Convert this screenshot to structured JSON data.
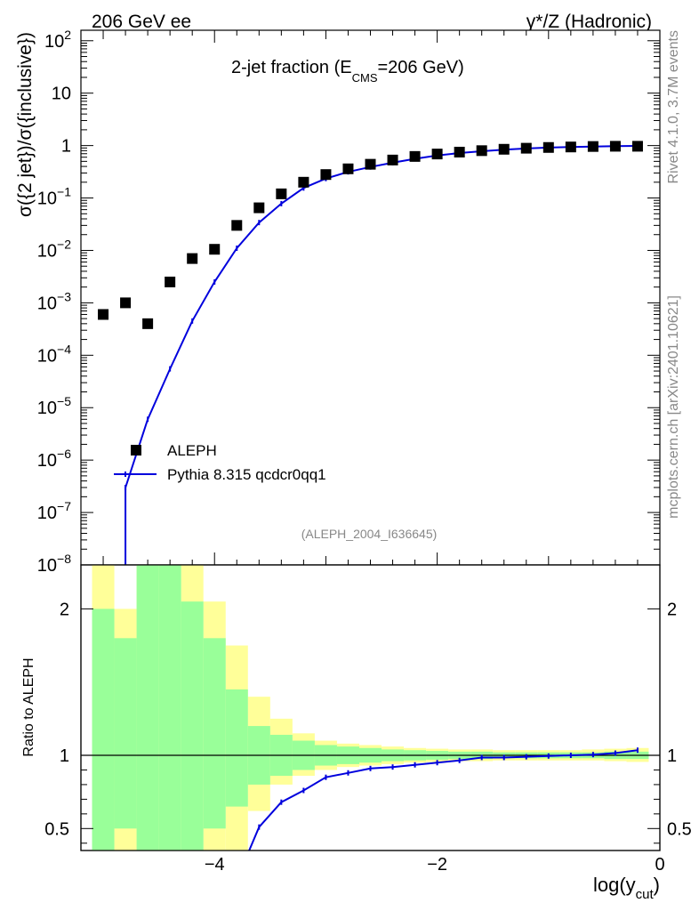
{
  "chart_data": {
    "type": "scatter",
    "header": {
      "left": "206 GeV ee",
      "right": "γ*/Z (Hadronic)"
    },
    "title": {
      "prefix": "2-jet fraction (E",
      "sub": "CMS",
      "suffix": "=206 GeV)"
    },
    "ylabel": "σ({2 jet})/σ({inclusive})",
    "ratio_ylabel": "Ratio to ALEPH",
    "xlabel": {
      "main": "log(y",
      "sub": "cut",
      "close": ")"
    },
    "side_text": {
      "top": "Rivet 4.1.0,  3.7M events",
      "bottom": "mcplots.cern.ch [arXiv:2401.10621]"
    },
    "analysis_tag": "(ALEPH_2004_I636645)",
    "xlim": [
      -5.2,
      0
    ],
    "ylim_log10": [
      -8,
      2.2
    ],
    "ratio_ylim": [
      0.35,
      2.3
    ],
    "x_ticks": [
      {
        "value": -4,
        "label": "−4"
      },
      {
        "value": -2,
        "label": "−2"
      },
      {
        "value": 0,
        "label": "0"
      }
    ],
    "y_ticks": [
      {
        "exp": 2,
        "base": "10",
        "sup": "2"
      },
      {
        "exp": 1,
        "base": "10",
        "sup": ""
      },
      {
        "exp": 0,
        "base": "1",
        "sup": ""
      },
      {
        "exp": -1,
        "base": "10",
        "sup": "−1"
      },
      {
        "exp": -2,
        "base": "10",
        "sup": "−2"
      },
      {
        "exp": -3,
        "base": "10",
        "sup": "−3"
      },
      {
        "exp": -4,
        "base": "10",
        "sup": "−4"
      },
      {
        "exp": -5,
        "base": "10",
        "sup": "−5"
      },
      {
        "exp": -6,
        "base": "10",
        "sup": "−6"
      },
      {
        "exp": -7,
        "base": "10",
        "sup": "−7"
      },
      {
        "exp": -8,
        "base": "10",
        "sup": "−8"
      }
    ],
    "ratio_y_ticks": [
      {
        "value": 2,
        "label": "2"
      },
      {
        "value": 1,
        "label": "1"
      },
      {
        "value": 0.5,
        "label": "0.5"
      }
    ],
    "series": [
      {
        "name": "ALEPH",
        "marker": "square",
        "color": "#000000",
        "x": [
          -5.0,
          -4.8,
          -4.6,
          -4.4,
          -4.2,
          -4.0,
          -3.8,
          -3.6,
          -3.4,
          -3.2,
          -3.0,
          -2.8,
          -2.6,
          -2.4,
          -2.2,
          -2.0,
          -1.8,
          -1.6,
          -1.4,
          -1.2,
          -1.0,
          -0.8,
          -0.6,
          -0.4,
          -0.2
        ],
        "y": [
          0.0006,
          0.001,
          0.0004,
          0.0025,
          0.007,
          0.0105,
          0.03,
          0.065,
          0.12,
          0.2,
          0.28,
          0.36,
          0.44,
          0.53,
          0.62,
          0.69,
          0.75,
          0.8,
          0.85,
          0.89,
          0.92,
          0.94,
          0.96,
          0.97,
          0.97
        ]
      },
      {
        "name": "Pythia 8.315 qcdcr0qq1",
        "marker": "line",
        "color": "#0000dd",
        "x": [
          -4.8,
          -4.6,
          -4.4,
          -4.2,
          -4.0,
          -3.8,
          -3.6,
          -3.4,
          -3.2,
          -3.0,
          -2.8,
          -2.6,
          -2.4,
          -2.2,
          -2.0,
          -1.8,
          -1.6,
          -1.4,
          -1.2,
          -1.0,
          -0.8,
          -0.6,
          -0.4,
          -0.2
        ],
        "y": [
          3e-07,
          6e-06,
          5.5e-05,
          0.00045,
          0.0025,
          0.011,
          0.034,
          0.078,
          0.155,
          0.235,
          0.315,
          0.39,
          0.47,
          0.56,
          0.65,
          0.72,
          0.78,
          0.835,
          0.88,
          0.915,
          0.94,
          0.96,
          0.975,
          0.985
        ]
      }
    ],
    "ratio": {
      "mc_x": [
        -3.7,
        -3.6,
        -3.4,
        -3.2,
        -3.0,
        -2.8,
        -2.6,
        -2.4,
        -2.2,
        -2.0,
        -1.8,
        -1.6,
        -1.4,
        -1.2,
        -1.0,
        -0.8,
        -0.6,
        -0.4,
        -0.2
      ],
      "mc_y": [
        0.33,
        0.51,
        0.68,
        0.76,
        0.85,
        0.88,
        0.91,
        0.92,
        0.935,
        0.95,
        0.965,
        0.985,
        0.985,
        0.99,
        0.995,
        1.0,
        1.005,
        1.015,
        1.035
      ],
      "bins": [
        {
          "x0": -5.1,
          "x1": -4.9,
          "inner_lo": 0.35,
          "inner_hi": 2.0,
          "outer_lo": 0.35,
          "outer_hi": 2.3
        },
        {
          "x0": -4.9,
          "x1": -4.7,
          "inner_lo": 0.5,
          "inner_hi": 1.8,
          "outer_lo": 0.35,
          "outer_hi": 2.0
        },
        {
          "x0": -4.7,
          "x1": -4.5,
          "inner_lo": 0.35,
          "inner_hi": 2.3,
          "outer_lo": 0.35,
          "outer_hi": 2.3
        },
        {
          "x0": -4.5,
          "x1": -4.3,
          "inner_lo": 0.35,
          "inner_hi": 2.3,
          "outer_lo": 0.35,
          "outer_hi": 2.3
        },
        {
          "x0": -4.3,
          "x1": -4.1,
          "inner_lo": 0.35,
          "inner_hi": 2.05,
          "outer_lo": 0.35,
          "outer_hi": 2.3
        },
        {
          "x0": -4.1,
          "x1": -3.9,
          "inner_lo": 0.5,
          "inner_hi": 1.8,
          "outer_lo": 0.35,
          "outer_hi": 2.05
        },
        {
          "x0": -3.9,
          "x1": -3.7,
          "inner_lo": 0.65,
          "inner_hi": 1.45,
          "outer_lo": 0.35,
          "outer_hi": 1.75
        },
        {
          "x0": -3.7,
          "x1": -3.5,
          "inner_lo": 0.8,
          "inner_hi": 1.2,
          "outer_lo": 0.62,
          "outer_hi": 1.4
        },
        {
          "x0": -3.5,
          "x1": -3.3,
          "inner_lo": 0.86,
          "inner_hi": 1.14,
          "outer_lo": 0.8,
          "outer_hi": 1.25
        },
        {
          "x0": -3.3,
          "x1": -3.1,
          "inner_lo": 0.9,
          "inner_hi": 1.1,
          "outer_lo": 0.86,
          "outer_hi": 1.15
        },
        {
          "x0": -3.1,
          "x1": -2.9,
          "inner_lo": 0.93,
          "inner_hi": 1.07,
          "outer_lo": 0.9,
          "outer_hi": 1.1
        },
        {
          "x0": -2.9,
          "x1": -2.7,
          "inner_lo": 0.94,
          "inner_hi": 1.06,
          "outer_lo": 0.92,
          "outer_hi": 1.08
        },
        {
          "x0": -2.7,
          "x1": -2.5,
          "inner_lo": 0.95,
          "inner_hi": 1.05,
          "outer_lo": 0.93,
          "outer_hi": 1.07
        },
        {
          "x0": -2.5,
          "x1": -2.3,
          "inner_lo": 0.96,
          "inner_hi": 1.04,
          "outer_lo": 0.94,
          "outer_hi": 1.06
        },
        {
          "x0": -2.3,
          "x1": -2.1,
          "inner_lo": 0.965,
          "inner_hi": 1.035,
          "outer_lo": 0.95,
          "outer_hi": 1.05
        },
        {
          "x0": -2.1,
          "x1": -1.9,
          "inner_lo": 0.97,
          "inner_hi": 1.03,
          "outer_lo": 0.955,
          "outer_hi": 1.045
        },
        {
          "x0": -1.9,
          "x1": -1.7,
          "inner_lo": 0.975,
          "inner_hi": 1.025,
          "outer_lo": 0.96,
          "outer_hi": 1.04
        },
        {
          "x0": -1.7,
          "x1": -1.5,
          "inner_lo": 0.975,
          "inner_hi": 1.025,
          "outer_lo": 0.96,
          "outer_hi": 1.04
        },
        {
          "x0": -1.5,
          "x1": -1.3,
          "inner_lo": 0.98,
          "inner_hi": 1.02,
          "outer_lo": 0.965,
          "outer_hi": 1.035
        },
        {
          "x0": -1.3,
          "x1": -1.1,
          "inner_lo": 0.98,
          "inner_hi": 1.02,
          "outer_lo": 0.965,
          "outer_hi": 1.035
        },
        {
          "x0": -1.1,
          "x1": -0.9,
          "inner_lo": 0.98,
          "inner_hi": 1.02,
          "outer_lo": 0.965,
          "outer_hi": 1.035
        },
        {
          "x0": -0.9,
          "x1": -0.7,
          "inner_lo": 0.98,
          "inner_hi": 1.02,
          "outer_lo": 0.965,
          "outer_hi": 1.035
        },
        {
          "x0": -0.7,
          "x1": -0.5,
          "inner_lo": 0.98,
          "inner_hi": 1.02,
          "outer_lo": 0.965,
          "outer_hi": 1.04
        },
        {
          "x0": -0.5,
          "x1": -0.3,
          "inner_lo": 0.975,
          "inner_hi": 1.025,
          "outer_lo": 0.96,
          "outer_hi": 1.045
        },
        {
          "x0": -0.3,
          "x1": -0.1,
          "inner_lo": 0.975,
          "inner_hi": 1.025,
          "outer_lo": 0.955,
          "outer_hi": 1.05
        }
      ]
    },
    "colors": {
      "inner_band": "#99ff99",
      "outer_band": "#ffff99",
      "mc_line": "#0000dd",
      "data_marker": "#000000",
      "side_text": "#888888"
    }
  }
}
